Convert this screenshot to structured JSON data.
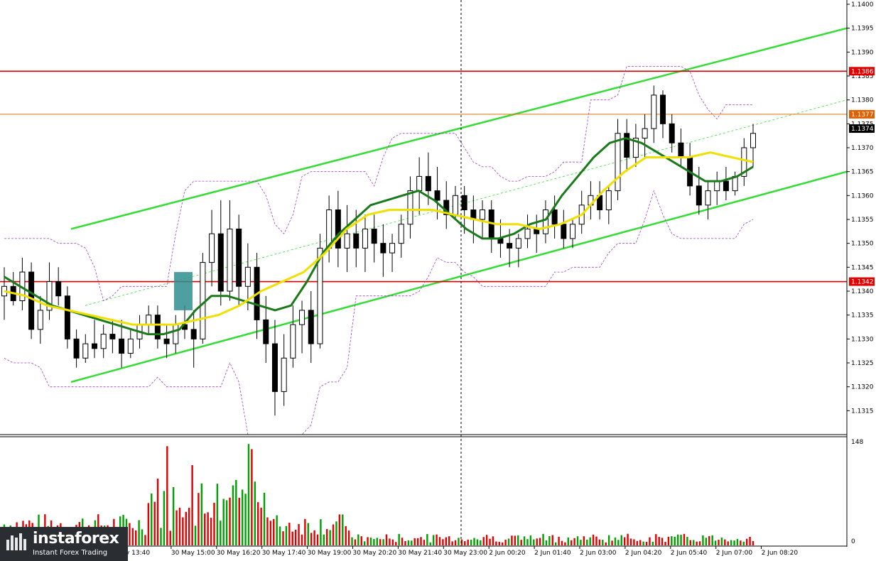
{
  "chart_data": {
    "type": "candlestick",
    "instrument_panel": "price",
    "y_axis": {
      "ticks": [
        "1.1400",
        "1.1395",
        "1.1390",
        "1.1385",
        "1.1380",
        "1.1375",
        "1.1370",
        "1.1365",
        "1.1360",
        "1.1355",
        "1.1350",
        "1.1345",
        "1.1340",
        "1.1335",
        "1.1330",
        "1.1325",
        "1.1320",
        "1.1315"
      ],
      "ylim": [
        1.131,
        1.14
      ]
    },
    "x_axis": {
      "ticks": [
        "y 13:40",
        "30 May 15:00",
        "30 May 16:20",
        "30 May 17:40",
        "30 May 19:00",
        "30 May 20:20",
        "30 May 21:40",
        "30 May 23:00",
        "2 Jun 00:20",
        "2 Jun 01:40",
        "2 Jun 03:00",
        "2 Jun 04:20",
        "2 Jun 05:40",
        "2 Jun 07:00",
        "2 Jun 08:20"
      ]
    },
    "price_tags": [
      {
        "label": "1.1386",
        "value": 1.1386,
        "color": "#e00000"
      },
      {
        "label": "1.1377",
        "value": 1.1377,
        "color": "#e06000"
      },
      {
        "label": "1.1374",
        "value": 1.1374,
        "color": "#000000"
      },
      {
        "label": "1.1342",
        "value": 1.1342,
        "color": "#e00000"
      }
    ],
    "horizontal_levels": [
      {
        "value": 1.1386,
        "color": "#cc0000"
      },
      {
        "value": 1.1377,
        "color": "#e07000"
      },
      {
        "value": 1.1342,
        "color": "#cc0000"
      }
    ],
    "trend_channel": {
      "color": "#33dd33",
      "upper_line": {
        "x_label_start": "30 May 15:00",
        "y_start": 1.1353,
        "y_end": 1.1395
      },
      "lower_line": {
        "x_label_start": "30 May 15:00",
        "y_start": 1.1321,
        "y_end": 1.1365
      }
    },
    "candles": [
      [
        1.1339,
        1.1345,
        1.1334,
        1.1341
      ],
      [
        1.1341,
        1.1344,
        1.1337,
        1.1338
      ],
      [
        1.1338,
        1.1347,
        1.1336,
        1.1344
      ],
      [
        1.1344,
        1.1346,
        1.133,
        1.1332
      ],
      [
        1.1332,
        1.1339,
        1.1329,
        1.1336
      ],
      [
        1.1336,
        1.1346,
        1.1334,
        1.1342
      ],
      [
        1.1342,
        1.1345,
        1.1337,
        1.1339
      ],
      [
        1.1339,
        1.1341,
        1.1328,
        1.133
      ],
      [
        1.133,
        1.1332,
        1.1324,
        1.1326
      ],
      [
        1.1326,
        1.1331,
        1.1325,
        1.1329
      ],
      [
        1.1329,
        1.1334,
        1.1326,
        1.1328
      ],
      [
        1.1328,
        1.1333,
        1.1326,
        1.1331
      ],
      [
        1.1331,
        1.1334,
        1.1327,
        1.133
      ],
      [
        1.133,
        1.1334,
        1.1324,
        1.1327
      ],
      [
        1.1327,
        1.1332,
        1.1326,
        1.133
      ],
      [
        1.133,
        1.1335,
        1.1328,
        1.1333
      ],
      [
        1.1333,
        1.1337,
        1.1331,
        1.1335
      ],
      [
        1.1335,
        1.1337,
        1.1328,
        1.133
      ],
      [
        1.133,
        1.1333,
        1.1326,
        1.1329
      ],
      [
        1.1329,
        1.1335,
        1.1327,
        1.1333
      ],
      [
        1.1333,
        1.1337,
        1.133,
        1.1332
      ],
      [
        1.1332,
        1.1336,
        1.1324,
        1.133
      ],
      [
        1.133,
        1.1348,
        1.1329,
        1.1346
      ],
      [
        1.1346,
        1.1357,
        1.1341,
        1.1352
      ],
      [
        1.1352,
        1.1359,
        1.1337,
        1.134
      ],
      [
        1.134,
        1.1359,
        1.1338,
        1.1353
      ],
      [
        1.1353,
        1.1356,
        1.1337,
        1.1341
      ],
      [
        1.1341,
        1.135,
        1.1336,
        1.1345
      ],
      [
        1.1345,
        1.1348,
        1.133,
        1.1334
      ],
      [
        1.1334,
        1.1339,
        1.1325,
        1.1329
      ],
      [
        1.1329,
        1.1334,
        1.1314,
        1.1319
      ],
      [
        1.1319,
        1.1331,
        1.1316,
        1.1326
      ],
      [
        1.1326,
        1.1337,
        1.1324,
        1.1333
      ],
      [
        1.1333,
        1.1338,
        1.1327,
        1.1336
      ],
      [
        1.1336,
        1.134,
        1.1325,
        1.1329
      ],
      [
        1.1329,
        1.1352,
        1.1328,
        1.1349
      ],
      [
        1.1349,
        1.136,
        1.1346,
        1.1357
      ],
      [
        1.1357,
        1.1361,
        1.1345,
        1.1349
      ],
      [
        1.1349,
        1.1358,
        1.1344,
        1.1352
      ],
      [
        1.1352,
        1.1357,
        1.1345,
        1.1349
      ],
      [
        1.1349,
        1.1356,
        1.1344,
        1.1353
      ],
      [
        1.1353,
        1.1356,
        1.1346,
        1.135
      ],
      [
        1.135,
        1.1354,
        1.1343,
        1.1348
      ],
      [
        1.1348,
        1.1352,
        1.1344,
        1.135
      ],
      [
        1.135,
        1.1356,
        1.1347,
        1.1354
      ],
      [
        1.1354,
        1.1364,
        1.1351,
        1.1361
      ],
      [
        1.1361,
        1.1368,
        1.1356,
        1.1364
      ],
      [
        1.1364,
        1.1369,
        1.1358,
        1.1361
      ],
      [
        1.1361,
        1.1366,
        1.1355,
        1.1359
      ],
      [
        1.1359,
        1.1363,
        1.1353,
        1.1356
      ],
      [
        1.1356,
        1.1362,
        1.1355,
        1.136
      ],
      [
        1.136,
        1.1362,
        1.1352,
        1.1357
      ],
      [
        1.1357,
        1.136,
        1.135,
        1.1355
      ],
      [
        1.1355,
        1.1359,
        1.1351,
        1.1357
      ],
      [
        1.1357,
        1.1359,
        1.1348,
        1.1351
      ],
      [
        1.1351,
        1.1355,
        1.1347,
        1.135
      ],
      [
        1.135,
        1.1353,
        1.1345,
        1.1349
      ],
      [
        1.1349,
        1.1352,
        1.1345,
        1.1351
      ],
      [
        1.1351,
        1.1356,
        1.1349,
        1.1353
      ],
      [
        1.1353,
        1.1356,
        1.1348,
        1.1352
      ],
      [
        1.1352,
        1.1359,
        1.135,
        1.1357
      ],
      [
        1.1357,
        1.136,
        1.1351,
        1.1354
      ],
      [
        1.1354,
        1.1357,
        1.1349,
        1.1351
      ],
      [
        1.1351,
        1.1355,
        1.1349,
        1.1354
      ],
      [
        1.1354,
        1.1361,
        1.1352,
        1.1358
      ],
      [
        1.1358,
        1.1363,
        1.1355,
        1.136
      ],
      [
        1.136,
        1.1363,
        1.1355,
        1.1357
      ],
      [
        1.1357,
        1.1362,
        1.1354,
        1.1361
      ],
      [
        1.1361,
        1.1376,
        1.1359,
        1.1373
      ],
      [
        1.1373,
        1.1376,
        1.1365,
        1.1368
      ],
      [
        1.1368,
        1.1375,
        1.1366,
        1.1372
      ],
      [
        1.1372,
        1.1377,
        1.1368,
        1.1374
      ],
      [
        1.1374,
        1.1383,
        1.1371,
        1.1381
      ],
      [
        1.1381,
        1.1382,
        1.1372,
        1.1375
      ],
      [
        1.1375,
        1.1377,
        1.1369,
        1.1371
      ],
      [
        1.1371,
        1.1374,
        1.1366,
        1.1368
      ],
      [
        1.1368,
        1.1371,
        1.136,
        1.1362
      ],
      [
        1.1362,
        1.1366,
        1.1356,
        1.1358
      ],
      [
        1.1358,
        1.1363,
        1.1355,
        1.1361
      ],
      [
        1.1361,
        1.1365,
        1.1358,
        1.1363
      ],
      [
        1.1363,
        1.1366,
        1.1359,
        1.1361
      ],
      [
        1.1361,
        1.1365,
        1.136,
        1.1364
      ],
      [
        1.1364,
        1.1372,
        1.1362,
        1.137
      ],
      [
        1.137,
        1.1375,
        1.1366,
        1.1373
      ]
    ],
    "moving_averages": [
      {
        "period_label": "fast",
        "color": "#1a7a1a",
        "values": [
          1.1343,
          1.1341,
          1.1339,
          1.1337,
          1.1336,
          1.1335,
          1.1334,
          1.1333,
          1.1332,
          1.1331,
          1.1331,
          1.1332,
          1.1336,
          1.1339,
          1.1339,
          1.1338,
          1.1337,
          1.1336,
          1.1337,
          1.1342,
          1.1348,
          1.1352,
          1.1355,
          1.1358,
          1.1359,
          1.136,
          1.1361,
          1.1359,
          1.1356,
          1.1353,
          1.1351,
          1.1351,
          1.1352,
          1.1354,
          1.1355,
          1.136,
          1.1364,
          1.1368,
          1.1371,
          1.1372,
          1.1371,
          1.1369,
          1.1367,
          1.1365,
          1.1363,
          1.1363,
          1.1364,
          1.1366
        ]
      },
      {
        "period_label": "slow",
        "color": "#f0e000",
        "values": [
          1.134,
          1.1339,
          1.1337,
          1.1336,
          1.1335,
          1.1334,
          1.1333,
          1.1333,
          1.1333,
          1.1334,
          1.1335,
          1.1337,
          1.134,
          1.1342,
          1.1344,
          1.1348,
          1.1353,
          1.1356,
          1.1357,
          1.1357,
          1.1357,
          1.1356,
          1.1355,
          1.1354,
          1.1354,
          1.1353,
          1.1354,
          1.1356,
          1.1361,
          1.1365,
          1.1368,
          1.1368,
          1.1368,
          1.1369,
          1.1368,
          1.1367
        ]
      }
    ],
    "volume_panel": {
      "y_ticks": [
        "148",
        "0"
      ],
      "ylim": [
        0,
        148
      ],
      "up_color": "#00a000",
      "down_color": "#e00000"
    }
  },
  "logo": {
    "name": "instaforex",
    "tagline": "Instant Forex Trading"
  }
}
